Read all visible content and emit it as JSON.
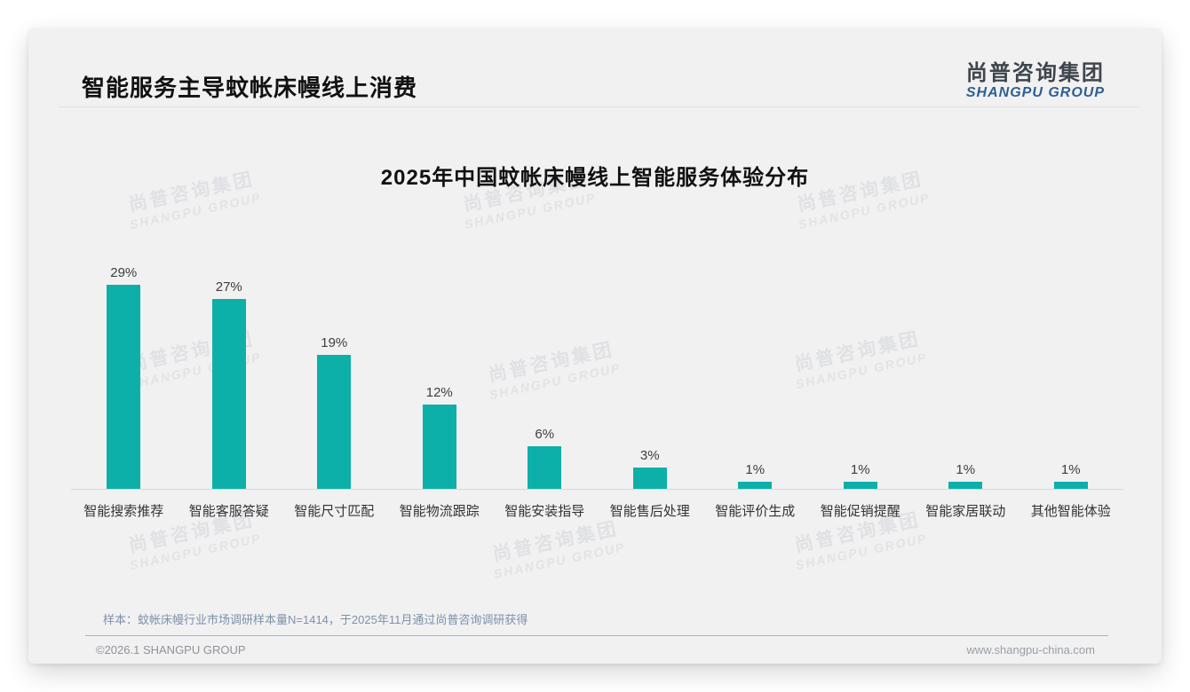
{
  "header": {
    "title": "智能服务主导蚊帐床幔线上消费",
    "logo_cn": "尚普咨询集团",
    "logo_en": "SHANGPU GROUP"
  },
  "chart_data": {
    "type": "bar",
    "title": "2025年中国蚊帐床幔线上智能服务体验分布",
    "categories": [
      "智能搜索推荐",
      "智能客服答疑",
      "智能尺寸匹配",
      "智能物流跟踪",
      "智能安装指导",
      "智能售后处理",
      "智能评价生成",
      "智能促销提醒",
      "智能家居联动",
      "其他智能体验"
    ],
    "values": [
      29,
      27,
      19,
      12,
      6,
      3,
      1,
      1,
      1,
      1
    ],
    "data_labels": [
      "29%",
      "27%",
      "19%",
      "12%",
      "6%",
      "3%",
      "1%",
      "1%",
      "1%",
      "1%"
    ],
    "unit": "%",
    "ylim": [
      0,
      30
    ],
    "bar_color": "#0cb0a9",
    "grid": false,
    "legend": "none",
    "xlabel": "",
    "ylabel": ""
  },
  "watermark": {
    "line1": "尚普咨询集团",
    "line2": "SHANGPU GROUP"
  },
  "footnote": "样本：蚊帐床幔行业市场调研样本量N=1414，于2025年11月通过尚普咨询调研获得",
  "footer": {
    "copyright": "©2026.1 SHANGPU GROUP",
    "website": "www.shangpu-china.com"
  },
  "colors": {
    "bar_teal": "#0cb0a9",
    "logo_blue": "#2d5f92",
    "footnote_bluegray": "#7d91a8",
    "slide_background": "#f1f1f2"
  }
}
